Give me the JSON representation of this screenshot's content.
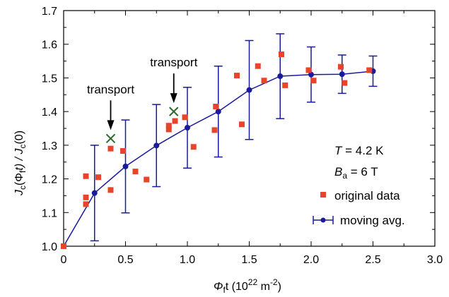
{
  "chart_data": {
    "type": "scatter",
    "xlim": [
      0,
      3.0
    ],
    "ylim": [
      1.0,
      1.7
    ],
    "xticks": [
      "0",
      "0.5",
      "1.0",
      "1.5",
      "2.0",
      "2.5",
      "3.0"
    ],
    "yticks": [
      "1.0",
      "1.1",
      "1.2",
      "1.3",
      "1.4",
      "1.5",
      "1.6",
      "1.7"
    ],
    "xlabel": {
      "main": "Φ",
      "sub": "f",
      "mid": "t (10",
      "sup": "22",
      "end": " m",
      "sup2": "-2",
      "close": ")"
    },
    "ylabel": {
      "J": "J",
      "c1": "c",
      "p1": "(Φ",
      "f": "f",
      "t": "t) / ",
      "J2": "J",
      "c2": "c",
      "zero": "(0)"
    },
    "conditions": {
      "T_sym": "T",
      "T_val": " = 4.2 K",
      "B_sym": "B",
      "B_sub": "a",
      "B_val": " = 6 T"
    },
    "annotations": [
      {
        "text": "transport",
        "x": 0.38,
        "y": 1.32
      },
      {
        "text": "transport",
        "x": 0.89,
        "y": 1.4
      }
    ],
    "colors": {
      "original": "#e8442a",
      "moving": "#1a1a9c",
      "transport_marker": "#2e6b2e"
    },
    "series": [
      {
        "name": "original data",
        "marker": "square",
        "points": [
          [
            0,
            1.0
          ],
          [
            0.18,
            1.125
          ],
          [
            0.18,
            1.145
          ],
          [
            0.18,
            1.208
          ],
          [
            0.28,
            1.205
          ],
          [
            0.38,
            1.29
          ],
          [
            0.38,
            1.167
          ],
          [
            0.48,
            1.283
          ],
          [
            0.58,
            1.222
          ],
          [
            0.67,
            1.198
          ],
          [
            0.85,
            1.358
          ],
          [
            0.85,
            1.347
          ],
          [
            0.9,
            1.372
          ],
          [
            0.98,
            1.383
          ],
          [
            1.05,
            1.295
          ],
          [
            1.22,
            1.345
          ],
          [
            1.23,
            1.415
          ],
          [
            1.4,
            1.507
          ],
          [
            1.44,
            1.362
          ],
          [
            1.57,
            1.535
          ],
          [
            1.62,
            1.492
          ],
          [
            1.76,
            1.57
          ],
          [
            1.79,
            1.478
          ],
          [
            1.98,
            1.523
          ],
          [
            2.02,
            1.492
          ],
          [
            2.24,
            1.533
          ],
          [
            2.27,
            1.485
          ],
          [
            2.47,
            1.523
          ]
        ]
      },
      {
        "name": "moving avg.",
        "marker": "circle",
        "points": [
          [
            0,
            1.0,
            0
          ],
          [
            0.25,
            1.158,
            0.142
          ],
          [
            0.5,
            1.237,
            0.138
          ],
          [
            0.75,
            1.299,
            0.122
          ],
          [
            1.0,
            1.352,
            0.12
          ],
          [
            1.25,
            1.4,
            0.135
          ],
          [
            1.5,
            1.464,
            0.147
          ],
          [
            1.75,
            1.505,
            0.126
          ],
          [
            2.0,
            1.51,
            0.082
          ],
          [
            2.25,
            1.511,
            0.057
          ],
          [
            2.5,
            1.52,
            0.045
          ]
        ]
      },
      {
        "name": "transport",
        "marker": "cross",
        "points": [
          [
            0.38,
            1.32
          ],
          [
            0.89,
            1.4
          ]
        ]
      }
    ]
  }
}
